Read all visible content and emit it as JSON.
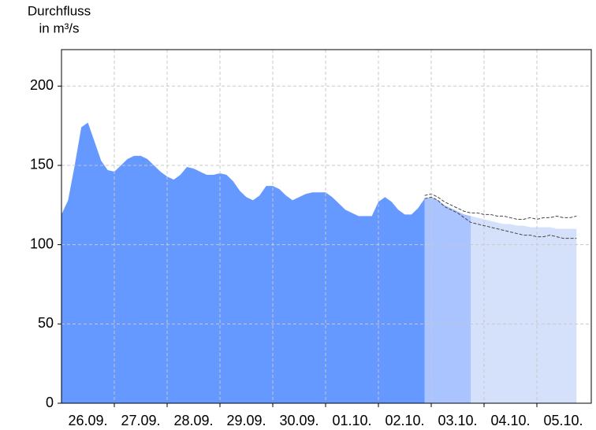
{
  "chart_data": {
    "type": "area",
    "ylabel": [
      "Durchfluss",
      "in m³/s"
    ],
    "categories": [
      null,
      null,
      null,
      null,
      "26.09.",
      null,
      null,
      null,
      null,
      null,
      null,
      null,
      "27.09.",
      null,
      null,
      null,
      null,
      null,
      null,
      null,
      "28.09.",
      null,
      null,
      null,
      null,
      null,
      null,
      null,
      "29.09.",
      null,
      null,
      null,
      null,
      null,
      null,
      null,
      "30.09.",
      null,
      null,
      null,
      null,
      null,
      null,
      null,
      "01.10.",
      null,
      null,
      null,
      null,
      null,
      null,
      null,
      "02.10.",
      null,
      null,
      null,
      null,
      null,
      null,
      null,
      "03.10.",
      null,
      null,
      null,
      null,
      null,
      null,
      null,
      "04.10.",
      null,
      null,
      null,
      null,
      null,
      null,
      null,
      "05.10.",
      null,
      null,
      null
    ],
    "series": [
      {
        "color": "#d5e1fb",
        "style": "area",
        "values": [
          null,
          null,
          null,
          null,
          null,
          null,
          null,
          null,
          null,
          null,
          null,
          null,
          null,
          null,
          null,
          null,
          null,
          null,
          null,
          null,
          null,
          null,
          null,
          null,
          null,
          null,
          null,
          null,
          null,
          null,
          null,
          null,
          null,
          null,
          null,
          null,
          null,
          null,
          null,
          null,
          null,
          null,
          null,
          null,
          null,
          null,
          null,
          null,
          null,
          null,
          null,
          null,
          null,
          null,
          null,
          null,
          null,
          null,
          null,
          null,
          null,
          null,
          118,
          117,
          116,
          115,
          114,
          113,
          113,
          112,
          112,
          111,
          111,
          111,
          111,
          110,
          110,
          110,
          110,
          null
        ]
      },
      {
        "color": "#aac4ff",
        "style": "area",
        "values": [
          null,
          null,
          null,
          null,
          null,
          null,
          null,
          null,
          null,
          null,
          null,
          null,
          null,
          null,
          null,
          null,
          null,
          null,
          null,
          null,
          null,
          null,
          null,
          null,
          null,
          null,
          null,
          null,
          null,
          null,
          null,
          null,
          null,
          null,
          null,
          null,
          null,
          null,
          null,
          null,
          null,
          null,
          null,
          null,
          null,
          null,
          null,
          null,
          null,
          null,
          null,
          null,
          null,
          null,
          null,
          129,
          130,
          128,
          125,
          123,
          121,
          119,
          118,
          null,
          null,
          null,
          null,
          null,
          null,
          null,
          null,
          null,
          null,
          null,
          null,
          null,
          null,
          null,
          null,
          null
        ]
      },
      {
        "color": "#6699ff",
        "style": "area",
        "values": [
          119,
          128,
          150,
          174,
          177,
          165,
          153,
          147,
          146,
          150,
          154,
          156,
          156,
          154,
          150,
          146,
          143,
          141,
          144,
          149,
          148,
          146,
          144,
          144,
          145,
          144,
          140,
          134,
          130,
          128,
          131,
          137,
          137,
          135,
          131,
          128,
          130,
          132,
          133,
          133,
          133,
          130,
          126,
          122,
          120,
          118,
          118,
          118,
          127,
          130,
          127,
          122,
          119,
          119,
          123,
          129,
          null,
          null,
          null,
          null,
          null,
          null,
          null,
          null,
          null,
          null,
          null,
          null,
          null,
          null,
          null,
          null,
          null,
          null,
          null,
          null,
          null,
          null,
          null,
          null
        ]
      },
      {
        "color": "#444444",
        "style": "dashed",
        "values": [
          null,
          null,
          null,
          null,
          null,
          null,
          null,
          null,
          null,
          null,
          null,
          null,
          null,
          null,
          null,
          null,
          null,
          null,
          null,
          null,
          null,
          null,
          null,
          null,
          null,
          null,
          null,
          null,
          null,
          null,
          null,
          null,
          null,
          null,
          null,
          null,
          null,
          null,
          null,
          null,
          null,
          null,
          null,
          null,
          null,
          null,
          null,
          null,
          null,
          null,
          null,
          null,
          null,
          null,
          null,
          131,
          132,
          130,
          127,
          125,
          123,
          121,
          120,
          120,
          119,
          119,
          118,
          118,
          117,
          116,
          116,
          117,
          116,
          117,
          117,
          118,
          117,
          117,
          118,
          null
        ]
      },
      {
        "color": "#444444",
        "style": "dashed",
        "values": [
          null,
          null,
          null,
          null,
          null,
          null,
          null,
          null,
          null,
          null,
          null,
          null,
          null,
          null,
          null,
          null,
          null,
          null,
          null,
          null,
          null,
          null,
          null,
          null,
          null,
          null,
          null,
          null,
          null,
          null,
          null,
          null,
          null,
          null,
          null,
          null,
          null,
          null,
          null,
          null,
          null,
          null,
          null,
          null,
          null,
          null,
          null,
          null,
          null,
          null,
          null,
          null,
          null,
          null,
          null,
          129,
          130,
          128,
          124,
          122,
          120,
          117,
          114,
          113,
          112,
          111,
          110,
          109,
          108,
          107,
          106,
          106,
          105,
          105,
          106,
          105,
          104,
          104,
          104,
          null
        ]
      }
    ],
    "ylim": [
      0,
      223
    ],
    "yticks": [
      0,
      50,
      100,
      150,
      200
    ],
    "grid": true
  }
}
